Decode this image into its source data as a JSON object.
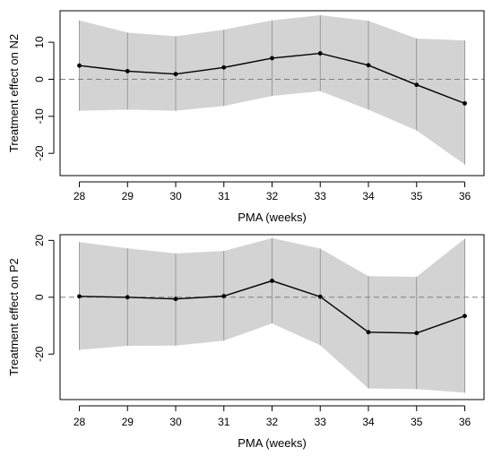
{
  "chart_data": [
    {
      "type": "line",
      "xlabel": "PMA (weeks)",
      "ylabel": "Treatment effect on N2",
      "x": [
        28,
        29,
        30,
        31,
        32,
        33,
        34,
        35,
        36
      ],
      "xticks": [
        "28",
        "29",
        "30",
        "31",
        "32",
        "33",
        "34",
        "35",
        "36"
      ],
      "yticks": [
        -20,
        -10,
        0,
        10
      ],
      "xlim": [
        27.6,
        36.4
      ],
      "ylim": [
        -26,
        18.5
      ],
      "reference_line": 0,
      "series": [
        {
          "estimate": [
            3.7,
            2.2,
            1.4,
            3.2,
            5.7,
            7.0,
            3.8,
            -1.5,
            -6.5
          ],
          "lower": [
            -8.5,
            -8.2,
            -8.5,
            -7.2,
            -4.5,
            -3.2,
            -8.2,
            -13.8,
            -23.0
          ],
          "upper": [
            15.9,
            12.6,
            11.6,
            13.4,
            15.9,
            17.3,
            15.8,
            11.0,
            10.5
          ]
        }
      ],
      "colors": {
        "band": "#d3d3d3",
        "line": "#000000",
        "reference": "#808080"
      }
    },
    {
      "type": "line",
      "xlabel": "PMA (weeks)",
      "ylabel": "Treatment effect on P2",
      "x": [
        28,
        29,
        30,
        31,
        32,
        33,
        34,
        35,
        36
      ],
      "xticks": [
        "28",
        "29",
        "30",
        "31",
        "32",
        "33",
        "34",
        "35",
        "36"
      ],
      "yticks": [
        -20,
        0,
        20
      ],
      "xlim": [
        27.6,
        36.4
      ],
      "ylim": [
        -36,
        22
      ],
      "reference_line": 0,
      "series": [
        {
          "estimate": [
            0.3,
            0.0,
            -0.6,
            0.4,
            5.8,
            0.2,
            -12.3,
            -12.6,
            -6.6
          ],
          "lower": [
            -18.5,
            -17.1,
            -17.0,
            -15.3,
            -9.2,
            -16.9,
            -32.1,
            -32.3,
            -33.6
          ],
          "upper": [
            19.4,
            17.2,
            15.4,
            16.3,
            20.8,
            17.1,
            7.4,
            7.2,
            20.6
          ]
        }
      ],
      "colors": {
        "band": "#d3d3d3",
        "line": "#000000",
        "reference": "#808080"
      }
    }
  ]
}
